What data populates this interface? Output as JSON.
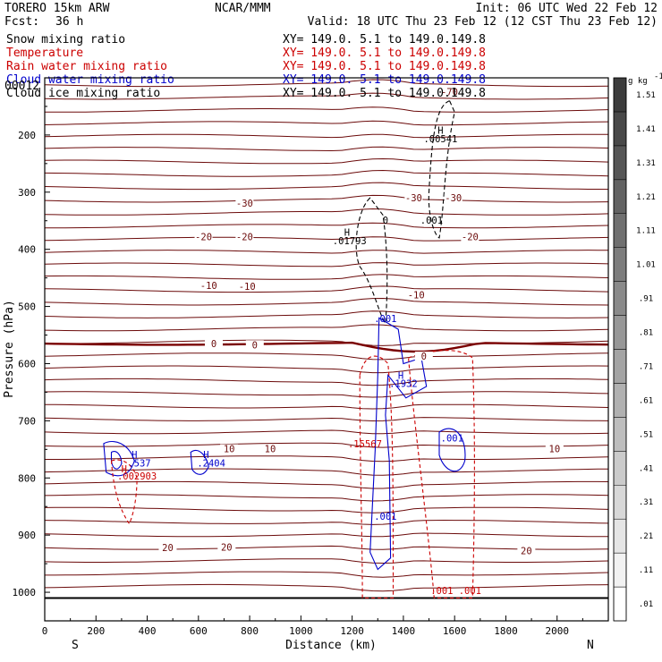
{
  "header": {
    "model": "TORERO  15km ARW",
    "center": "NCAR/MMM",
    "init": "Init: 06 UTC Wed 22 Feb 12",
    "fcst_label": "Fcst:",
    "fcst_value": "36 h",
    "valid": "Valid: 18 UTC Thu 23 Feb 12 (12 CST Thu 23 Feb 12)"
  },
  "colors": {
    "snow": "#000000",
    "temperature": "#cc0000",
    "rain": "#cc0000",
    "cloud_water": "#0000cc",
    "cloud_ice": "#000000",
    "isotherm": "#6b0a0a",
    "zero_isotherm": "#7a0000"
  },
  "legend": [
    {
      "name": "Snow mixing ratio",
      "color": "#000000",
      "xy": "XY= 149.0.  5.1 to 149.0.149.8"
    },
    {
      "name": "Temperature",
      "color": "#cc0000",
      "xy": "XY= 149.0.  5.1 to 149.0.149.8"
    },
    {
      "name": "Rain water mixing ratio",
      "color": "#cc0000",
      "xy": "XY= 149.0.  5.1 to 149.0.149.8"
    },
    {
      "name": "Cloud water mixing ratio",
      "color": "#0000cc",
      "xy": "XY= 149.0.  5.1 to 149.0.149.8"
    },
    {
      "name": "Cloud ice mixing ratio",
      "color": "#000000",
      "xy": "XY= 149.0.  5.1 to 149.0.149.8"
    }
  ],
  "chart_data": {
    "type": "heatmap",
    "xlabel": "Distance (km)",
    "ylabel": "Pressure (hPa)",
    "x_left_label": "S",
    "x_right_label": "N",
    "xlim": [
      0,
      2200
    ],
    "ylim": [
      1050,
      100
    ],
    "x_ticks": [
      0,
      200,
      400,
      600,
      800,
      1000,
      1200,
      1400,
      1600,
      1800,
      2000
    ],
    "y_ticks": [
      200,
      300,
      400,
      500,
      600,
      700,
      800,
      900,
      1000
    ],
    "y_scale": "linear",
    "top_left_overlay_label": "00012",
    "colorbar": {
      "unit": "g kg",
      "unit_exp": "-1",
      "levels": [
        0.01,
        0.11,
        0.21,
        0.31,
        0.41,
        0.51,
        0.61,
        0.71,
        0.81,
        0.91,
        1.01,
        1.11,
        1.21,
        1.31,
        1.41,
        1.51
      ],
      "level_labels": [
        ".01",
        ".11",
        ".21",
        ".31",
        ".41",
        ".51",
        ".61",
        ".71",
        ".81",
        ".91",
        "1.01",
        "1.11",
        "1.21",
        "1.31",
        "1.41",
        "1.51"
      ]
    },
    "isotherm_labels": [
      {
        "text": "-70",
        "x": 1580,
        "p": 127
      },
      {
        "text": "-30",
        "x": 780,
        "p": 322
      },
      {
        "text": "-30",
        "x": 1440,
        "p": 313
      },
      {
        "text": "-30",
        "x": 1595,
        "p": 313
      },
      {
        "text": "-20",
        "x": 620,
        "p": 381
      },
      {
        "text": "-20",
        "x": 780,
        "p": 381
      },
      {
        "text": "-20",
        "x": 1660,
        "p": 381
      },
      {
        "text": "-10",
        "x": 640,
        "p": 466
      },
      {
        "text": "-10",
        "x": 790,
        "p": 468
      },
      {
        "text": "-10",
        "x": 1450,
        "p": 483
      },
      {
        "text": "0",
        "x": 660,
        "p": 568
      },
      {
        "text": "0",
        "x": 820,
        "p": 570
      },
      {
        "text": "0",
        "x": 1480,
        "p": 590
      },
      {
        "text": "10",
        "x": 720,
        "p": 752
      },
      {
        "text": "10",
        "x": 880,
        "p": 752
      },
      {
        "text": "10",
        "x": 1990,
        "p": 752
      },
      {
        "text": "20",
        "x": 480,
        "p": 925
      },
      {
        "text": "20",
        "x": 710,
        "p": 924
      },
      {
        "text": "20",
        "x": 1880,
        "p": 930
      }
    ],
    "extrema_labels": [
      {
        "text": "H",
        "x": 1545,
        "p": 198,
        "color": "#000000"
      },
      {
        "text": ".00541",
        "x": 1545,
        "p": 213,
        "color": "#000000"
      },
      {
        "text": ".001",
        "x": 1510,
        "p": 355,
        "color": "#000000"
      },
      {
        "text": "0",
        "x": 1330,
        "p": 355,
        "color": "#000000"
      },
      {
        "text": "H",
        "x": 1180,
        "p": 376,
        "color": "#000000"
      },
      {
        "text": ".01793",
        "x": 1190,
        "p": 391,
        "color": "#000000"
      },
      {
        "text": ".001",
        "x": 1330,
        "p": 527,
        "color": "#0000cc"
      },
      {
        "text": "H",
        "x": 1390,
        "p": 627,
        "color": "#0000cc"
      },
      {
        "text": ".1932",
        "x": 1400,
        "p": 641,
        "color": "#0000cc"
      },
      {
        "text": ".001",
        "x": 1590,
        "p": 736,
        "color": "#0000cc"
      },
      {
        "text": ".15567",
        "x": 1250,
        "p": 746,
        "color": "#cc0000"
      },
      {
        "text": ".001",
        "x": 1330,
        "p": 873,
        "color": "#0000cc"
      },
      {
        "text": "H",
        "x": 350,
        "p": 765,
        "color": "#0000cc"
      },
      {
        "text": ".537",
        "x": 370,
        "p": 780,
        "color": "#0000cc"
      },
      {
        "text": "H",
        "x": 630,
        "p": 765,
        "color": "#0000cc"
      },
      {
        "text": ".2404",
        "x": 650,
        "p": 780,
        "color": "#0000cc"
      },
      {
        "text": "H",
        "x": 310,
        "p": 790,
        "color": "#cc0000"
      },
      {
        "text": ".002903",
        "x": 360,
        "p": 803,
        "color": "#cc0000"
      },
      {
        "text": ".001",
        "x": 1550,
        "p": 1003,
        "color": "#cc0000"
      },
      {
        "text": ".001",
        "x": 1660,
        "p": 1003,
        "color": "#cc0000"
      }
    ]
  }
}
